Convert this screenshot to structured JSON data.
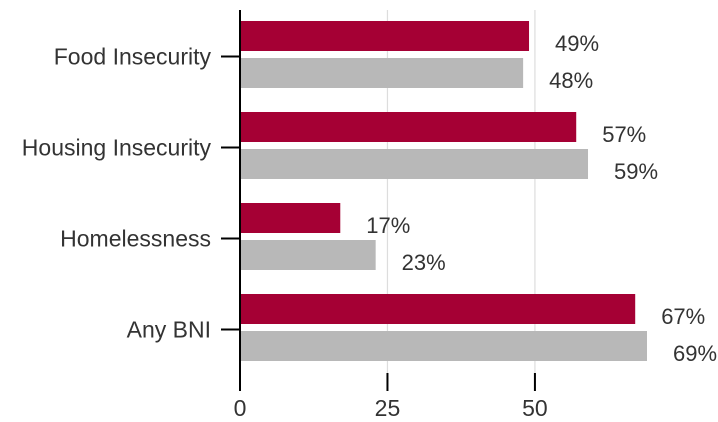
{
  "chart_data": {
    "type": "bar",
    "orientation": "horizontal",
    "categories": [
      "Food Insecurity",
      "Housing Insecurity",
      "Homelessness",
      "Any BNI"
    ],
    "series": [
      {
        "values": [
          49,
          57,
          17,
          67
        ],
        "value_labels": [
          "49%",
          "57%",
          "17%",
          "67%"
        ],
        "color": "#a50034"
      },
      {
        "values": [
          48,
          59,
          23,
          69
        ],
        "value_labels": [
          "48%",
          "59%",
          "23%",
          "69%"
        ],
        "color": "#b8b8b8"
      }
    ],
    "x_ticks": [
      0,
      25,
      50
    ],
    "x_tick_labels": [
      "0",
      "25",
      "50"
    ],
    "xlim": [
      0,
      69
    ],
    "grid": "vertical",
    "gridline_color": "#dddddd",
    "axis_color": "#000000"
  }
}
